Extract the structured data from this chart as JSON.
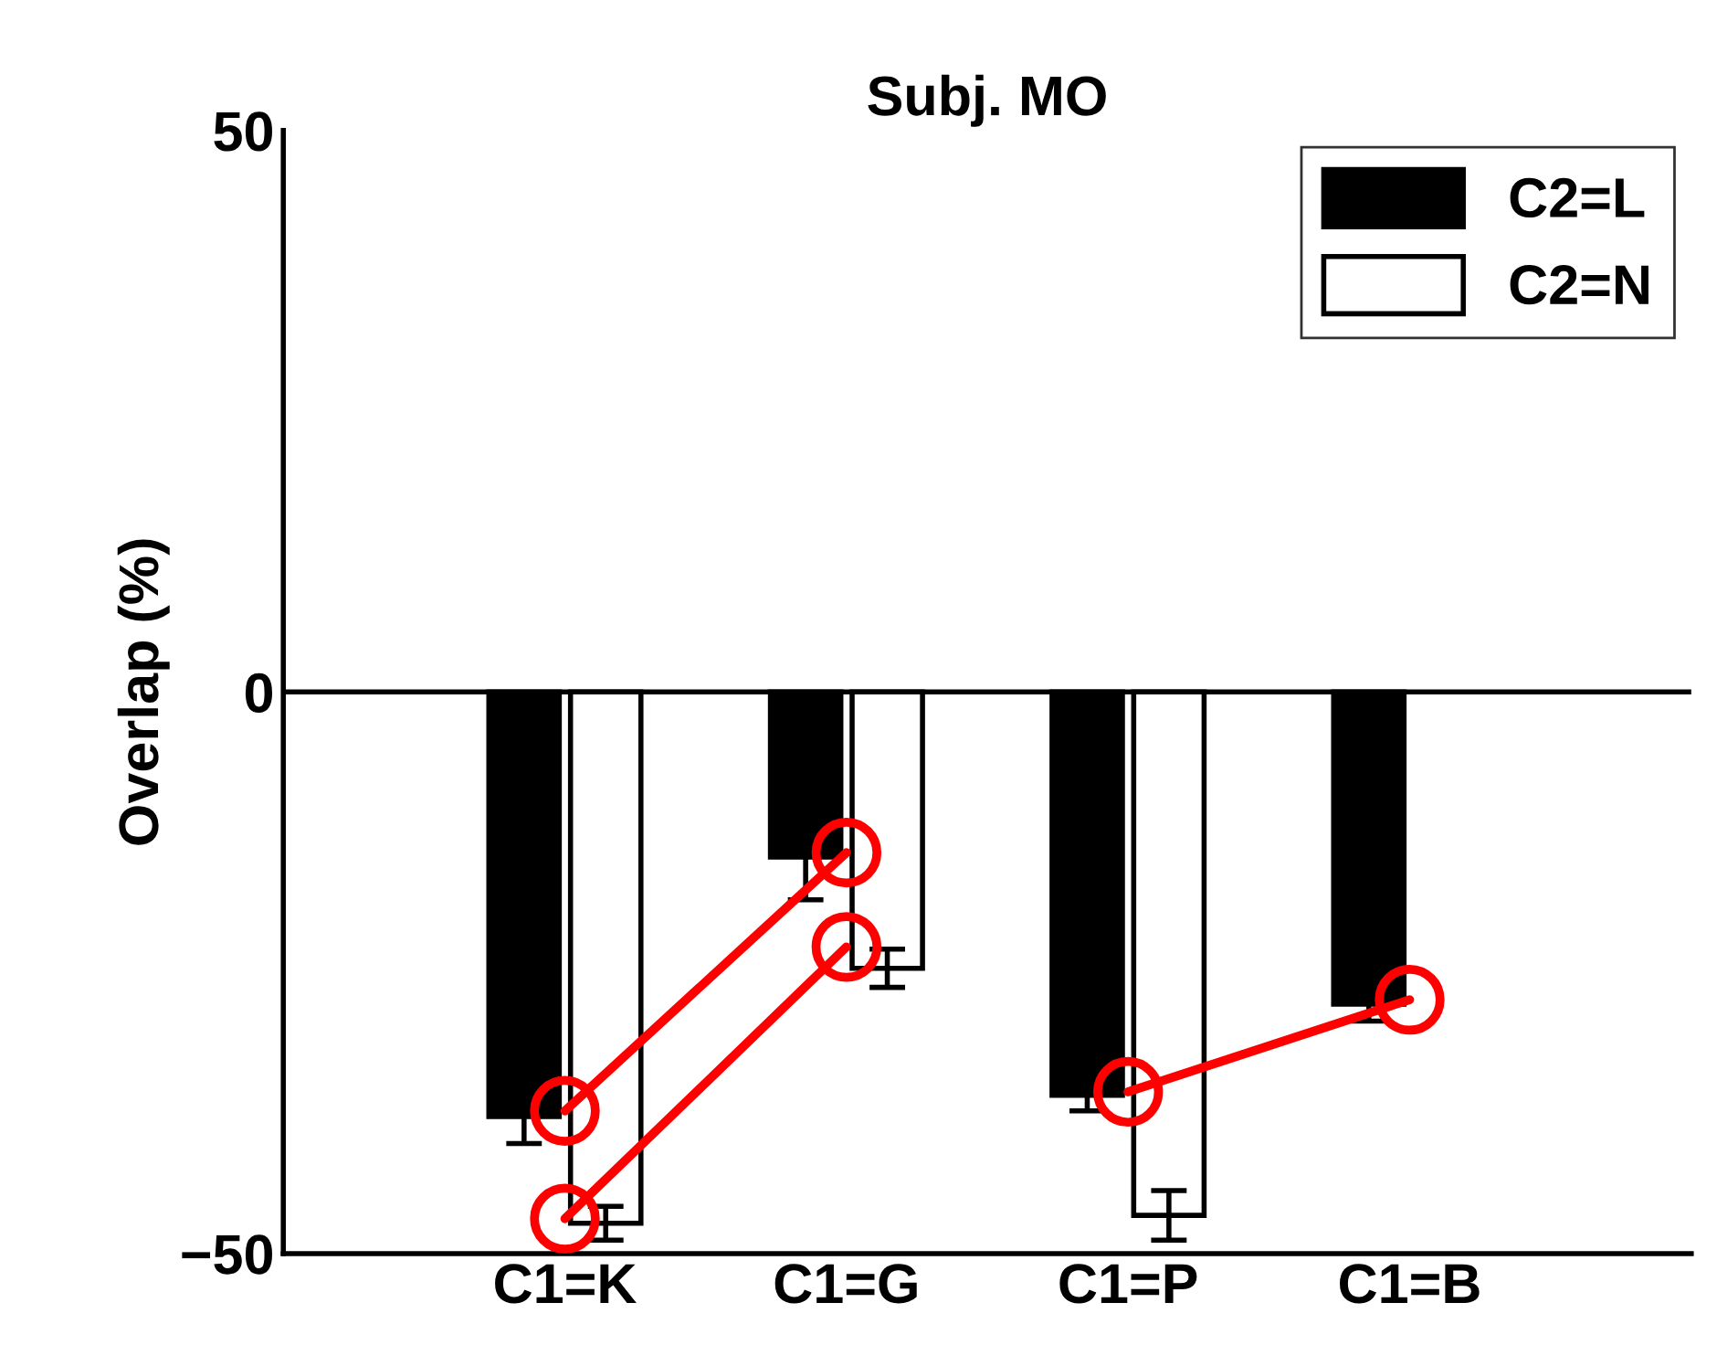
{
  "chart_data": {
    "type": "bar",
    "title": "Subj. MO",
    "ylabel": "Overlap (%)",
    "categories": [
      "C1=K",
      "C1=G",
      "C1=P",
      "C1=B"
    ],
    "series": [
      {
        "name": "C2=L",
        "color": "#000000",
        "values": [
          -37.8,
          -14.7,
          -35.9,
          -27.8
        ],
        "errors": [
          2.4,
          3.8,
          1.4,
          1.5
        ]
      },
      {
        "name": "C2=N",
        "color": "#ffffff",
        "values": [
          -47.3,
          -24.6,
          -46.6,
          0
        ],
        "errors": [
          1.5,
          1.7,
          2.2,
          null
        ]
      },
      {
        "type": "line",
        "color": "#ff0000",
        "marker": "circle",
        "values": [
          -37.3,
          -14.3,
          null,
          null
        ]
      },
      {
        "type": "line",
        "color": "#ff0000",
        "marker": "circle",
        "values": [
          -46.9,
          -22.7,
          null,
          null
        ]
      },
      {
        "type": "line",
        "color": "#ff0000",
        "marker": "circle",
        "values": [
          null,
          null,
          -35.6,
          -27.4
        ]
      }
    ],
    "ylim": [
      -50,
      50
    ],
    "yticks": [
      {
        "value": -50,
        "label": "−50"
      },
      0,
      50
    ],
    "ref_lines": [
      {
        "axis": "y",
        "value": 0,
        "color": "#000000"
      }
    ],
    "legend": "top right",
    "grid": false
  }
}
